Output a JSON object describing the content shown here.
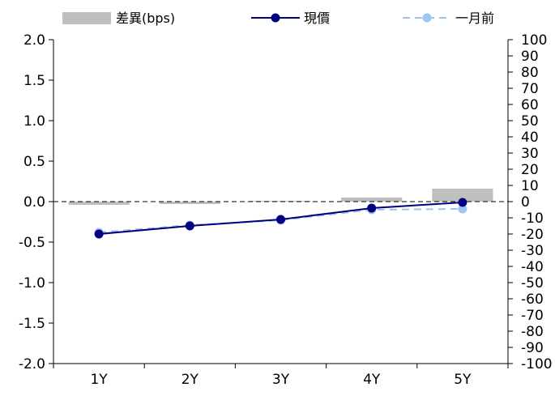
{
  "chart_data": {
    "type": "bar+line",
    "categories": [
      "1Y",
      "2Y",
      "3Y",
      "4Y",
      "5Y"
    ],
    "legend": [
      {
        "key": "bar",
        "label": "差異(bps)"
      },
      {
        "key": "current",
        "label": "現價"
      },
      {
        "key": "month_ago",
        "label": "一月前"
      }
    ],
    "bar_series": {
      "name": "差異(bps)",
      "axis": "right",
      "values": [
        -2,
        -1.5,
        0.5,
        2.5,
        8
      ]
    },
    "line_series": [
      {
        "name": "現價",
        "axis": "left",
        "values": [
          -0.4,
          -0.3,
          -0.22,
          -0.08,
          -0.01
        ]
      },
      {
        "name": "一月前",
        "axis": "left",
        "values": [
          -0.38,
          -0.29,
          -0.23,
          -0.1,
          -0.09
        ]
      }
    ],
    "left_axis": {
      "min": -2.0,
      "max": 2.0,
      "ticks": [
        "2.0",
        "1.5",
        "1.0",
        "0.5",
        "0.0",
        "-0.5",
        "-1.0",
        "-1.5",
        "-2.0"
      ]
    },
    "right_axis": {
      "min": -100,
      "max": 100,
      "ticks": [
        "100",
        "90",
        "80",
        "70",
        "60",
        "50",
        "40",
        "30",
        "20",
        "10",
        "0",
        "-10",
        "-20",
        "-30",
        "-40",
        "-50",
        "-60",
        "-70",
        "-80",
        "-90",
        "-100"
      ]
    },
    "colors": {
      "bar": "#bfbfbf",
      "current": "#00007f",
      "month_ago": "#9ec5ef",
      "zero_line": "#000000"
    },
    "grid": false,
    "legend_position": "top"
  }
}
